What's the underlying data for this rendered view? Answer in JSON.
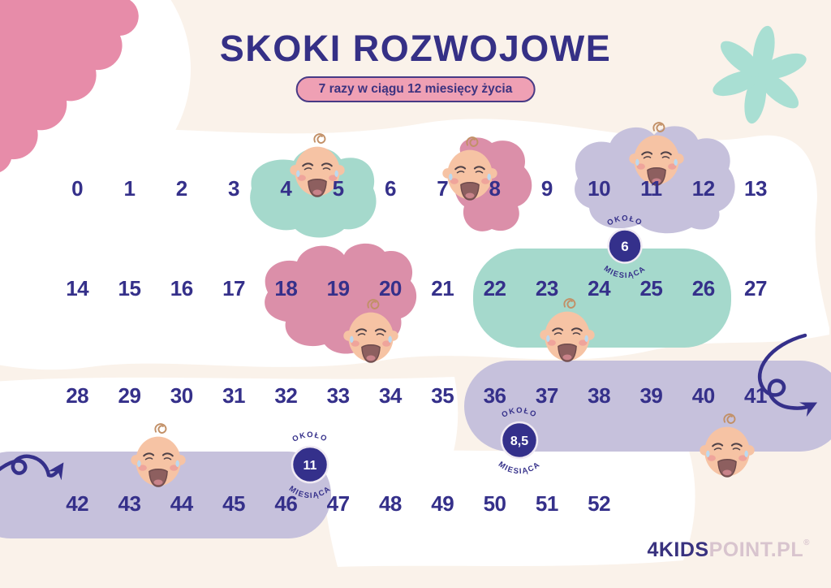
{
  "title": "SKOKI ROZWOJOWE",
  "subtitle": "7 razy w ciągu 12 miesięcy życia",
  "weeks_rows": [
    [
      0,
      1,
      2,
      3,
      4,
      5,
      6,
      7,
      8,
      9,
      10,
      11,
      12,
      13
    ],
    [
      14,
      15,
      16,
      17,
      18,
      19,
      20,
      21,
      22,
      23,
      24,
      25,
      26,
      27
    ],
    [
      28,
      29,
      30,
      31,
      32,
      33,
      34,
      35,
      36,
      37,
      38,
      39,
      40,
      41
    ],
    [
      42,
      43,
      44,
      45,
      46,
      47,
      48,
      49,
      50,
      51,
      52
    ]
  ],
  "badges": [
    {
      "top": "OKOŁO",
      "value": "6",
      "bottom": "MIESIĄCA"
    },
    {
      "top": "OKOŁO",
      "value": "8,5",
      "bottom": "MIESIĄCA"
    },
    {
      "top": "OKOŁO",
      "value": "11",
      "bottom": "MIESIĄCA"
    }
  ],
  "leaps": [
    {
      "weeks": "4-5",
      "highlight": "teal"
    },
    {
      "weeks": "8",
      "highlight": "pink"
    },
    {
      "weeks": "10-12",
      "highlight": "lavender"
    },
    {
      "weeks": "18-20",
      "highlight": "pink"
    },
    {
      "weeks": "22-26",
      "highlight": "teal",
      "badge": "około 6 miesiąca"
    },
    {
      "weeks": "36-41",
      "highlight": "lavender",
      "badge": "około 8,5 miesiąca"
    },
    {
      "weeks": "42-46",
      "highlight": "lavender",
      "badge": "około 11 miesiąca"
    }
  ],
  "logo": {
    "bold": "4KIDS",
    "light": "POINT.PL",
    "reg": "®"
  },
  "colors": {
    "navy": "#35308A",
    "teal": "#A5D9CC",
    "pink": "#DB8FA9",
    "lavender": "#C6C1DC",
    "cream": "#FAF2EA",
    "badge_navy": "#34308B",
    "pill_pink": "#EFA0B4",
    "corner_pink": "#E78CA9",
    "flower_teal": "#A9DFD3",
    "logo_light": "#D8C4CE",
    "baby_skin": "#F6C3A4",
    "white": "#FFFFFF"
  }
}
